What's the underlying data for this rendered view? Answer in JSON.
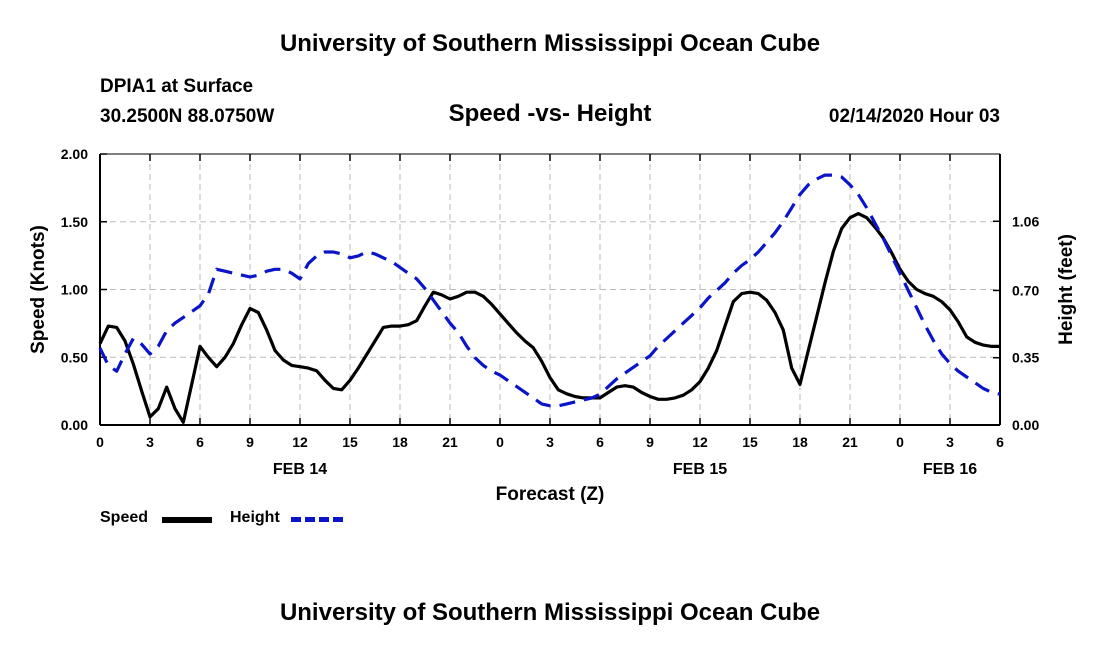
{
  "header": {
    "title": "University of Southern Mississippi Ocean Cube",
    "station": "DPIA1 at Surface",
    "coords": "30.2500N 88.0750W",
    "chart_title": "Speed -vs- Height",
    "datetime": "02/14/2020 Hour 03"
  },
  "footer": {
    "title": "University of Southern Mississippi Ocean Cube"
  },
  "legend": {
    "speed_label": "Speed",
    "height_label": "Height"
  },
  "colors": {
    "speed": "#000000",
    "height": "#0a14c8",
    "grid": "#bbbbbb"
  },
  "chart_data": {
    "type": "line",
    "title": "Speed -vs- Height",
    "xlabel": "Forecast (Z)",
    "ylabel": "Speed (Knots)",
    "y2label": "Height (feet)",
    "xlim": [
      0,
      54
    ],
    "ylim": [
      0,
      2.0
    ],
    "y2lim": [
      0,
      1.41
    ],
    "x_tick_values": [
      0,
      3,
      6,
      9,
      12,
      15,
      18,
      21,
      24,
      27,
      30,
      33,
      36,
      39,
      42,
      45,
      48,
      51,
      54
    ],
    "x_tick_labels": [
      "0",
      "3",
      "6",
      "9",
      "12",
      "15",
      "18",
      "21",
      "0",
      "3",
      "6",
      "9",
      "12",
      "15",
      "18",
      "21",
      "0",
      "3",
      "6"
    ],
    "date_labels": [
      {
        "x": 12,
        "label": "FEB 14"
      },
      {
        "x": 36,
        "label": "FEB 15"
      },
      {
        "x": 51,
        "label": "FEB 16"
      }
    ],
    "y_ticks": [
      0.0,
      0.5,
      1.0,
      1.5,
      2.0
    ],
    "y_tick_labels": [
      "0.00",
      "0.50",
      "1.00",
      "1.50",
      "2.00"
    ],
    "y2_ticks": [
      0.0,
      0.35,
      0.7,
      1.06
    ],
    "y2_tick_labels": [
      "0.00",
      "0.35",
      "0.70",
      "1.06"
    ],
    "grid": true,
    "series": [
      {
        "name": "Speed",
        "axis": "left",
        "x": [
          0,
          0.5,
          1,
          1.5,
          2,
          2.5,
          3,
          3.5,
          4,
          4.5,
          5,
          5.5,
          6,
          6.5,
          7,
          7.5,
          8,
          8.5,
          9,
          9.5,
          10,
          10.5,
          11,
          11.5,
          12,
          12.5,
          13,
          13.5,
          14,
          14.5,
          15,
          15.5,
          16,
          16.5,
          17,
          17.5,
          18,
          18.5,
          19,
          19.5,
          20,
          20.5,
          21,
          21.5,
          22,
          22.5,
          23,
          23.5,
          24,
          24.5,
          25,
          25.5,
          26,
          26.5,
          27,
          27.5,
          28,
          28.5,
          29,
          29.5,
          30,
          30.5,
          31,
          31.5,
          32,
          32.5,
          33,
          33.5,
          34,
          34.5,
          35,
          35.5,
          36,
          36.5,
          37,
          37.5,
          38,
          38.5,
          39,
          39.5,
          40,
          40.5,
          41,
          41.5,
          42,
          42.5,
          43,
          43.5,
          44,
          44.5,
          45,
          45.5,
          46,
          46.5,
          47,
          47.5,
          48,
          48.5,
          49,
          49.5,
          50,
          50.5,
          51,
          51.5,
          52,
          52.5,
          53,
          53.5,
          54
        ],
        "values": [
          0.6,
          0.73,
          0.72,
          0.62,
          0.45,
          0.25,
          0.06,
          0.12,
          0.28,
          0.12,
          0.02,
          0.3,
          0.58,
          0.5,
          0.43,
          0.5,
          0.6,
          0.74,
          0.86,
          0.83,
          0.7,
          0.55,
          0.48,
          0.44,
          0.43,
          0.42,
          0.4,
          0.33,
          0.27,
          0.26,
          0.33,
          0.42,
          0.52,
          0.62,
          0.72,
          0.73,
          0.73,
          0.74,
          0.77,
          0.88,
          0.98,
          0.96,
          0.93,
          0.95,
          0.98,
          0.98,
          0.95,
          0.89,
          0.82,
          0.75,
          0.68,
          0.62,
          0.57,
          0.47,
          0.35,
          0.26,
          0.23,
          0.21,
          0.2,
          0.2,
          0.2,
          0.24,
          0.28,
          0.29,
          0.28,
          0.24,
          0.21,
          0.19,
          0.19,
          0.2,
          0.22,
          0.26,
          0.32,
          0.42,
          0.55,
          0.73,
          0.91,
          0.97,
          0.98,
          0.97,
          0.92,
          0.83,
          0.7,
          0.42,
          0.3,
          0.55,
          0.8,
          1.05,
          1.28,
          1.45,
          1.53,
          1.56,
          1.53,
          1.46,
          1.38,
          1.27,
          1.15,
          1.06,
          1.0,
          0.97,
          0.95,
          0.91,
          0.85,
          0.76,
          0.65,
          0.61,
          0.59,
          0.58,
          0.58
        ]
      },
      {
        "name": "Height",
        "axis": "right",
        "x": [
          0,
          0.5,
          1,
          1.5,
          2,
          2.5,
          3,
          3.5,
          4,
          4.5,
          5,
          5.5,
          6,
          6.5,
          7,
          7.5,
          8,
          8.5,
          9,
          9.5,
          10,
          10.5,
          11,
          11.5,
          12,
          12.5,
          13,
          13.5,
          14,
          14.5,
          15,
          15.5,
          16,
          16.5,
          17,
          17.5,
          18,
          18.5,
          19,
          19.5,
          20,
          20.5,
          21,
          21.5,
          22,
          22.5,
          23,
          23.5,
          24,
          24.5,
          25,
          25.5,
          26,
          26.5,
          27,
          27.5,
          28,
          28.5,
          29,
          29.5,
          30,
          30.5,
          31,
          31.5,
          32,
          32.5,
          33,
          33.5,
          34,
          34.5,
          35,
          35.5,
          36,
          36.5,
          37,
          37.5,
          38,
          38.5,
          39,
          39.5,
          40,
          40.5,
          41,
          41.5,
          42,
          42.5,
          43,
          43.5,
          44,
          44.5,
          45,
          45.5,
          46,
          46.5,
          47,
          47.5,
          48,
          48.5,
          49,
          49.5,
          50,
          50.5,
          51,
          51.5,
          52,
          52.5,
          53,
          53.5,
          54
        ],
        "values": [
          0.4,
          0.31,
          0.28,
          0.37,
          0.45,
          0.42,
          0.37,
          0.41,
          0.49,
          0.53,
          0.56,
          0.59,
          0.62,
          0.68,
          0.81,
          0.8,
          0.79,
          0.78,
          0.77,
          0.78,
          0.8,
          0.81,
          0.81,
          0.79,
          0.76,
          0.84,
          0.88,
          0.9,
          0.9,
          0.89,
          0.87,
          0.88,
          0.9,
          0.89,
          0.87,
          0.85,
          0.82,
          0.79,
          0.76,
          0.71,
          0.65,
          0.59,
          0.53,
          0.48,
          0.41,
          0.35,
          0.31,
          0.28,
          0.26,
          0.23,
          0.2,
          0.17,
          0.14,
          0.11,
          0.1,
          0.1,
          0.11,
          0.12,
          0.13,
          0.14,
          0.16,
          0.2,
          0.24,
          0.27,
          0.3,
          0.33,
          0.36,
          0.41,
          0.45,
          0.49,
          0.53,
          0.57,
          0.61,
          0.66,
          0.7,
          0.74,
          0.79,
          0.83,
          0.86,
          0.9,
          0.95,
          1.0,
          1.06,
          1.13,
          1.2,
          1.25,
          1.28,
          1.3,
          1.3,
          1.29,
          1.25,
          1.2,
          1.13,
          1.05,
          0.97,
          0.88,
          0.79,
          0.7,
          0.61,
          0.52,
          0.44,
          0.37,
          0.32,
          0.28,
          0.25,
          0.22,
          0.19,
          0.17,
          0.16
        ]
      }
    ]
  }
}
